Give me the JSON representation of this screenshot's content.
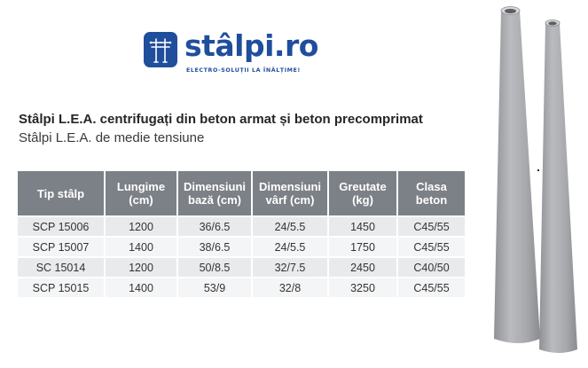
{
  "logo": {
    "wordmark": "stâlpi.ro",
    "tagline": "ELECTRO-SOLUȚII LA ÎNĂLȚIME!",
    "icon": "pylon-icon",
    "brand_color": "#1f4e9c"
  },
  "heading": "Stâlpi L.E.A. centrifugați din beton armat și beton precomprimat",
  "subheading": "Stâlpi L.E.A. de medie tensiune",
  "table": {
    "header_color": "#7c8087",
    "columns": [
      "Tip stâlp",
      "Lungime (cm)",
      "Dimensiuni bază (cm)",
      "Dimensiuni vârf (cm)",
      "Greutate (kg)",
      "Clasa beton"
    ],
    "rows": [
      [
        "SCP 15006",
        "1200",
        "36/6.5",
        "24/5.5",
        "1450",
        "C45/55"
      ],
      [
        "SCP 15007",
        "1400",
        "38/6.5",
        "24/5.5",
        "1750",
        "C45/55"
      ],
      [
        "SC 15014",
        "1200",
        "50/8.5",
        "32/7.5",
        "2450",
        "C40/50"
      ],
      [
        "SCP 15015",
        "1400",
        "53/9",
        "32/8",
        "3250",
        "C45/55"
      ]
    ]
  },
  "illustration": {
    "icon": "concrete-poles-illustration",
    "pole_color": "#a9abae"
  }
}
